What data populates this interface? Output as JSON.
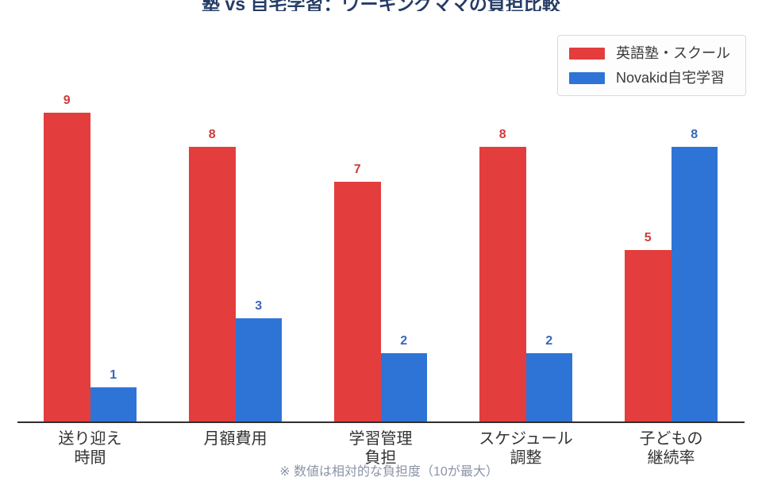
{
  "chart_data": {
    "type": "bar",
    "title": "塾 vs 自宅学習：ワーキングママの負担比較",
    "note": "※ 数値は相対的な負担度（10が最大）",
    "categories": [
      "送り迎え\n時間",
      "月額費用",
      "学習管理\n負担",
      "スケジュール\n調整",
      "子どもの\n継続率"
    ],
    "series": [
      {
        "name": "英語塾・スクール",
        "color": "#e33d3d",
        "label_color": "#ce3b3b",
        "values": [
          9,
          8,
          7,
          8,
          5
        ]
      },
      {
        "name": "Novakid自宅学習",
        "color": "#2e74d6",
        "label_color": "#3a66b8",
        "values": [
          1,
          3,
          2,
          2,
          8
        ]
      }
    ],
    "ylim": [
      0,
      10
    ],
    "grid": false,
    "legend_position": "top-right",
    "value_labels": true,
    "colors": {
      "title": "#253C66",
      "axis_line": "#2f2f2f",
      "tick_label": "#333333",
      "footnote": "#8b93a7"
    }
  }
}
